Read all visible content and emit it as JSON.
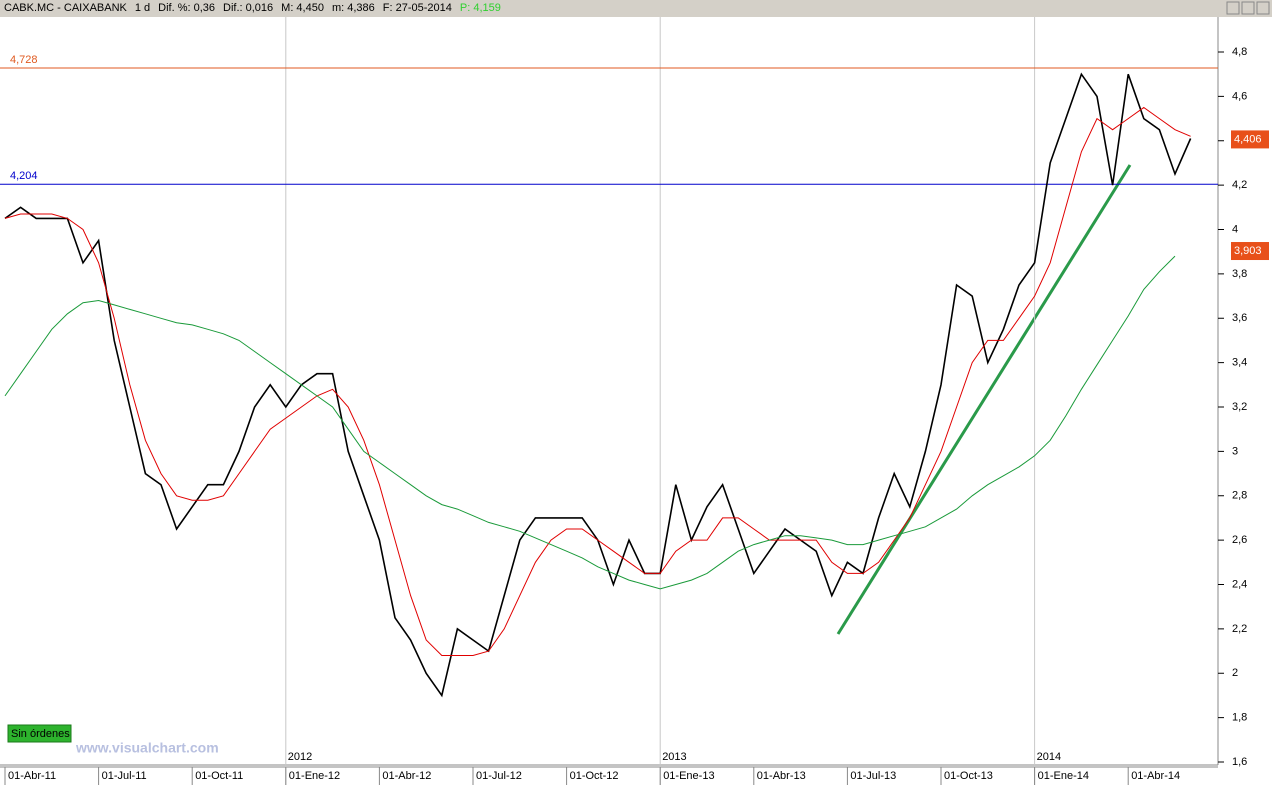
{
  "chart_data": {
    "type": "line",
    "header": [
      "CABK.MC - CAIXABANK",
      "1 d",
      "Dif. %: 0,36",
      "Dif.: 0,016",
      "M: 4,450",
      "m: 4,386",
      "F: 27-05-2014"
    ],
    "header_last": "P: 4,159",
    "status": "Sin órdenes",
    "watermark": "www.visualchart.com",
    "categories": [
      "01-Abr-11",
      null,
      null,
      null,
      null,
      null,
      "01-Jul-11",
      null,
      null,
      null,
      null,
      null,
      "01-Oct-11",
      null,
      null,
      null,
      null,
      null,
      "01-Ene-12",
      null,
      null,
      null,
      null,
      null,
      "01-Abr-12",
      null,
      null,
      null,
      null,
      null,
      "01-Jul-12",
      null,
      null,
      null,
      null,
      null,
      "01-Oct-12",
      null,
      null,
      null,
      null,
      null,
      "01-Ene-13",
      null,
      null,
      null,
      null,
      null,
      "01-Abr-13",
      null,
      null,
      null,
      null,
      null,
      "01-Jul-13",
      null,
      null,
      null,
      null,
      null,
      "01-Oct-13",
      null,
      null,
      null,
      null,
      null,
      "01-Ene-14",
      null,
      null,
      null,
      null,
      null,
      "01-Abr-14",
      null,
      null,
      null,
      null
    ],
    "years": [
      null,
      null,
      null,
      null,
      null,
      null,
      null,
      null,
      null,
      null,
      null,
      null,
      null,
      null,
      null,
      null,
      null,
      null,
      "2012",
      null,
      null,
      null,
      null,
      null,
      null,
      null,
      null,
      null,
      null,
      null,
      null,
      null,
      null,
      null,
      null,
      null,
      null,
      null,
      null,
      null,
      null,
      null,
      "2013",
      null,
      null,
      null,
      null,
      null,
      null,
      null,
      null,
      null,
      null,
      null,
      null,
      null,
      null,
      null,
      null,
      null,
      null,
      null,
      null,
      null,
      null,
      null,
      "2014",
      null,
      null,
      null,
      null,
      null,
      null,
      null,
      null,
      null,
      null
    ],
    "series": [
      {
        "color": "#000000",
        "values": [
          4.05,
          4.1,
          4.05,
          4.05,
          4.05,
          3.85,
          3.95,
          3.5,
          3.2,
          2.9,
          2.85,
          2.65,
          2.75,
          2.85,
          2.85,
          3.0,
          3.2,
          3.3,
          3.2,
          3.3,
          3.35,
          3.35,
          3.0,
          2.8,
          2.6,
          2.25,
          2.15,
          2.0,
          1.9,
          2.2,
          2.15,
          2.1,
          2.35,
          2.6,
          2.7,
          2.7,
          2.7,
          2.7,
          2.6,
          2.4,
          2.6,
          2.45,
          2.45,
          2.85,
          2.6,
          2.75,
          2.85,
          2.65,
          2.45,
          2.55,
          2.65,
          2.6,
          2.55,
          2.35,
          2.5,
          2.45,
          2.7,
          2.9,
          2.75,
          3.0,
          3.3,
          3.75,
          3.7,
          3.4,
          3.55,
          3.75,
          3.85,
          4.3,
          4.5,
          4.7,
          4.6,
          4.2,
          4.7,
          4.5,
          4.45,
          4.25,
          4.41
        ]
      },
      {
        "color": "#e00000",
        "values": [
          4.05,
          4.07,
          4.07,
          4.07,
          4.05,
          4.0,
          3.85,
          3.6,
          3.3,
          3.05,
          2.9,
          2.8,
          2.78,
          2.78,
          2.8,
          2.9,
          3.0,
          3.1,
          3.15,
          3.2,
          3.25,
          3.28,
          3.2,
          3.05,
          2.85,
          2.6,
          2.35,
          2.15,
          2.08,
          2.08,
          2.08,
          2.1,
          2.2,
          2.35,
          2.5,
          2.6,
          2.65,
          2.65,
          2.6,
          2.55,
          2.5,
          2.45,
          2.45,
          2.55,
          2.6,
          2.6,
          2.7,
          2.7,
          2.65,
          2.6,
          2.6,
          2.6,
          2.6,
          2.5,
          2.45,
          2.45,
          2.5,
          2.6,
          2.7,
          2.85,
          3.0,
          3.2,
          3.4,
          3.5,
          3.5,
          3.6,
          3.7,
          3.85,
          4.1,
          4.35,
          4.5,
          4.45,
          4.5,
          4.55,
          4.5,
          4.45,
          4.42
        ]
      },
      {
        "color": "#1a9a3a",
        "values": [
          3.25,
          3.35,
          3.45,
          3.55,
          3.62,
          3.67,
          3.68,
          3.66,
          3.64,
          3.62,
          3.6,
          3.58,
          3.57,
          3.55,
          3.53,
          3.5,
          3.45,
          3.4,
          3.35,
          3.3,
          3.25,
          3.2,
          3.1,
          3.0,
          2.95,
          2.9,
          2.85,
          2.8,
          2.76,
          2.74,
          2.71,
          2.68,
          2.66,
          2.64,
          2.61,
          2.58,
          2.55,
          2.52,
          2.48,
          2.45,
          2.42,
          2.4,
          2.38,
          2.4,
          2.42,
          2.45,
          2.5,
          2.55,
          2.58,
          2.6,
          2.62,
          2.62,
          2.61,
          2.6,
          2.58,
          2.58,
          2.6,
          2.62,
          2.64,
          2.66,
          2.7,
          2.74,
          2.8,
          2.85,
          2.89,
          2.93,
          2.98,
          3.05,
          3.16,
          3.28,
          3.39,
          3.5,
          3.61,
          3.73,
          3.81,
          3.88,
          null
        ]
      }
    ],
    "levels": [
      {
        "value": 4.728,
        "label": "4,728",
        "color": "#e05a20"
      },
      {
        "value": 4.204,
        "label": "4,204",
        "color": "#0000cc"
      }
    ],
    "price_tags": [
      {
        "value": 4.406,
        "label": "4,406"
      },
      {
        "value": 3.903,
        "label": "3,903"
      }
    ],
    "ylim": [
      1.6,
      4.8
    ],
    "yticks": [
      {
        "value": 1.6,
        "label": "1,6"
      },
      {
        "value": 1.8,
        "label": "1,8"
      },
      2,
      {
        "value": 2.2,
        "label": "2,2"
      },
      {
        "value": 2.4,
        "label": "2,4"
      },
      {
        "value": 2.6,
        "label": "2,6"
      },
      {
        "value": 2.8,
        "label": "2,8"
      },
      3,
      {
        "value": 3.2,
        "label": "3,2"
      },
      {
        "value": 3.4,
        "label": "3,4"
      },
      {
        "value": 3.6,
        "label": "3,6"
      },
      {
        "value": 3.8,
        "label": "3,8"
      },
      4,
      {
        "value": 4.2,
        "label": "4,2"
      },
      {
        "value": 4.4,
        "label": "4,4"
      },
      {
        "value": 4.6,
        "label": "4,6"
      },
      {
        "value": 4.8,
        "label": "4,8"
      }
    ]
  }
}
